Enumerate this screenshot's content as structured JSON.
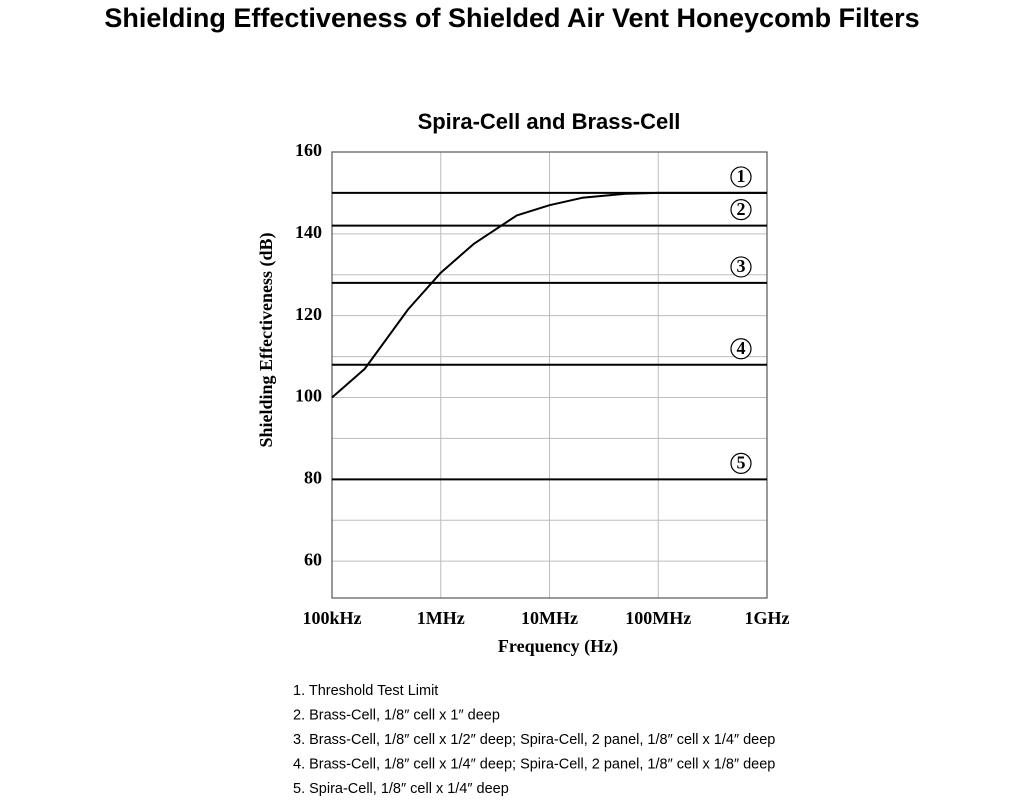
{
  "title": "Shielding Effectiveness of Shielded Air Vent Honeycomb Filters",
  "chart_data": {
    "type": "line",
    "title": "Spira-Cell and Brass-Cell",
    "x_label": "Frequency (Hz)",
    "y_label": "Shielding Effectiveness (dB)",
    "xscale": "log",
    "x": [
      100000,
      200000,
      500000,
      1000000,
      2000000,
      5000000,
      10000000,
      20000000,
      50000000,
      100000000,
      1000000000
    ],
    "series": [
      {
        "color": "#000000",
        "values": [
          100,
          107,
          121.5,
          130.5,
          137.5,
          144.5,
          147,
          148.8,
          149.8,
          150,
          150
        ]
      }
    ],
    "reference_lines": [
      {
        "label": "1",
        "value": 150
      },
      {
        "label": "2",
        "value": 142
      },
      {
        "label": "3",
        "value": 128
      },
      {
        "label": "4",
        "value": 108
      },
      {
        "label": "5",
        "value": 80
      }
    ],
    "xlim": [
      100000,
      1000000000
    ],
    "xticks": [
      {
        "value": 100000,
        "label": "100kHz"
      },
      {
        "value": 1000000,
        "label": "1MHz"
      },
      {
        "value": 10000000,
        "label": "10MHz"
      },
      {
        "value": 100000000,
        "label": "100MHz"
      },
      {
        "value": 1000000000,
        "label": "1GHz"
      }
    ],
    "ylim": [
      51,
      160
    ],
    "yticks": [
      60,
      80,
      100,
      120,
      140,
      160
    ],
    "y_minor_grid": [
      70,
      90,
      110,
      130,
      150
    ],
    "grid": true
  },
  "notes": [
    "1. Threshold Test Limit",
    "2. Brass-Cell, 1/8″ cell x 1″ deep",
    "3. Brass-Cell, 1/8″ cell x 1/2″ deep; Spira-Cell, 2 panel, 1/8″ cell x 1/4″ deep",
    "4. Brass-Cell, 1/8″ cell x 1/4″ deep; Spira-Cell, 2 panel, 1/8″ cell x 1/8″ deep",
    "5. Spira-Cell, 1/8″ cell x 1/4″ deep"
  ]
}
